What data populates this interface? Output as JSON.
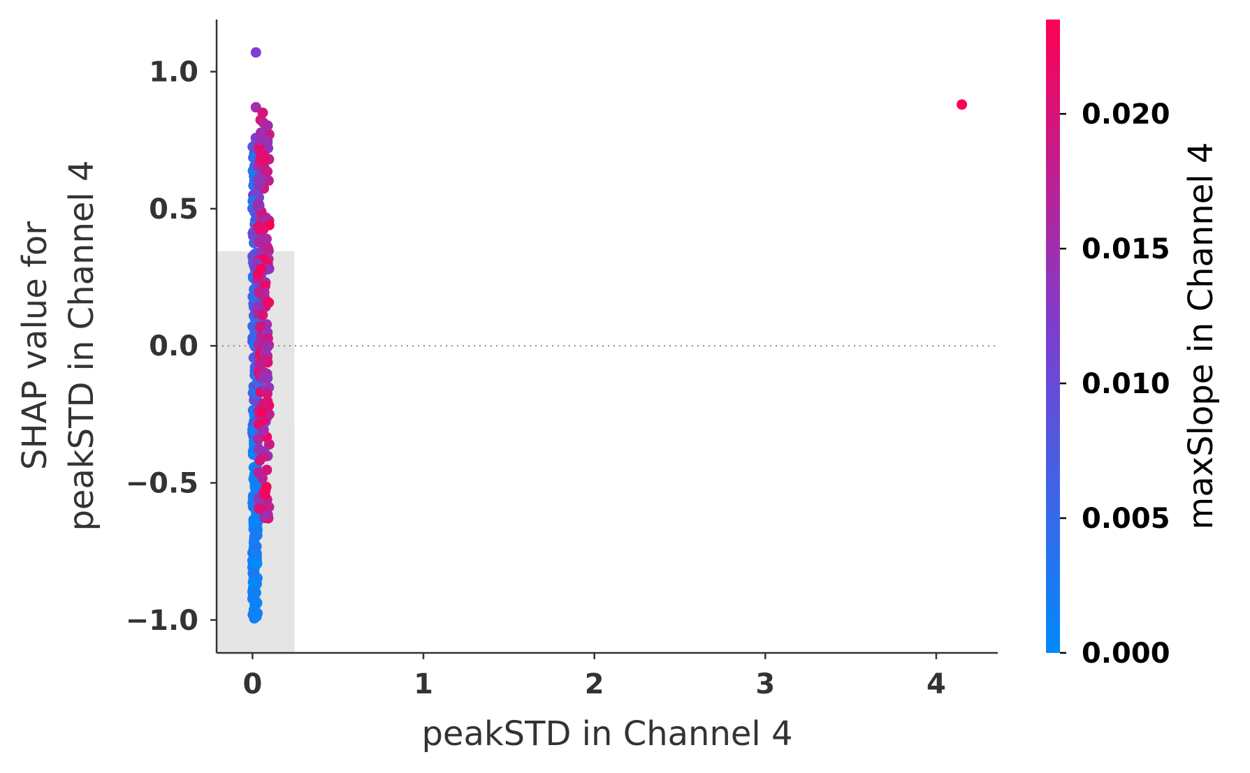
{
  "chart_data": {
    "type": "scatter",
    "title": "",
    "xlabel": "peakSTD in Channel 4",
    "ylabel_lines": [
      "SHAP value for",
      "peakSTD in Channel 4"
    ],
    "xlim": [
      -0.21,
      4.36
    ],
    "ylim": [
      -1.12,
      1.19
    ],
    "x_ticks": [
      0,
      1,
      2,
      3,
      4
    ],
    "x_tick_labels": [
      "0",
      "1",
      "2",
      "3",
      "4"
    ],
    "y_ticks": [
      1.0,
      0.5,
      0.0,
      -0.5,
      -1.0
    ],
    "y_tick_labels": [
      "1.0",
      "0.5",
      "0.0",
      "−0.5",
      "−1.0"
    ],
    "zero_line": true,
    "grid": false,
    "histogram_background": [
      {
        "x0": -0.21,
        "x1": 0.245,
        "height": 0.345
      },
      {
        "x0": -0.21,
        "x1": 0.245,
        "height": 0.715
      }
    ],
    "colorbar": {
      "label": "maxSlope in Channel 4",
      "min": 0.0,
      "max": 0.0235,
      "ticks": [
        0.0,
        0.005,
        0.01,
        0.015,
        0.02
      ],
      "tick_labels": [
        "0.000",
        "0.005",
        "0.010",
        "0.015",
        "0.020"
      ],
      "colors": [
        "#008afb",
        "#ff0052"
      ]
    },
    "outlier_points": [
      {
        "x": 4.15,
        "y": 0.88,
        "c": 0.0235
      },
      {
        "x": 0.02,
        "y": 1.07,
        "c": 0.012
      },
      {
        "x": 0.02,
        "y": 0.87,
        "c": 0.015
      },
      {
        "x": 0.06,
        "y": 0.85,
        "c": 0.02
      }
    ],
    "bands": [
      {
        "y_min": -1.0,
        "y_max": -0.24,
        "x_min": 0.0,
        "x_max": 0.03,
        "c_min": 0.0,
        "c_max": 0.003,
        "n": 150
      },
      {
        "y_min": -0.32,
        "y_max": 0.77,
        "x_min": 0.0,
        "x_max": 0.04,
        "c_min": 0.002,
        "c_max": 0.012,
        "n": 140
      },
      {
        "y_min": -0.64,
        "y_max": 0.83,
        "x_min": 0.03,
        "x_max": 0.1,
        "c_min": 0.013,
        "c_max": 0.023,
        "n": 160
      }
    ]
  }
}
